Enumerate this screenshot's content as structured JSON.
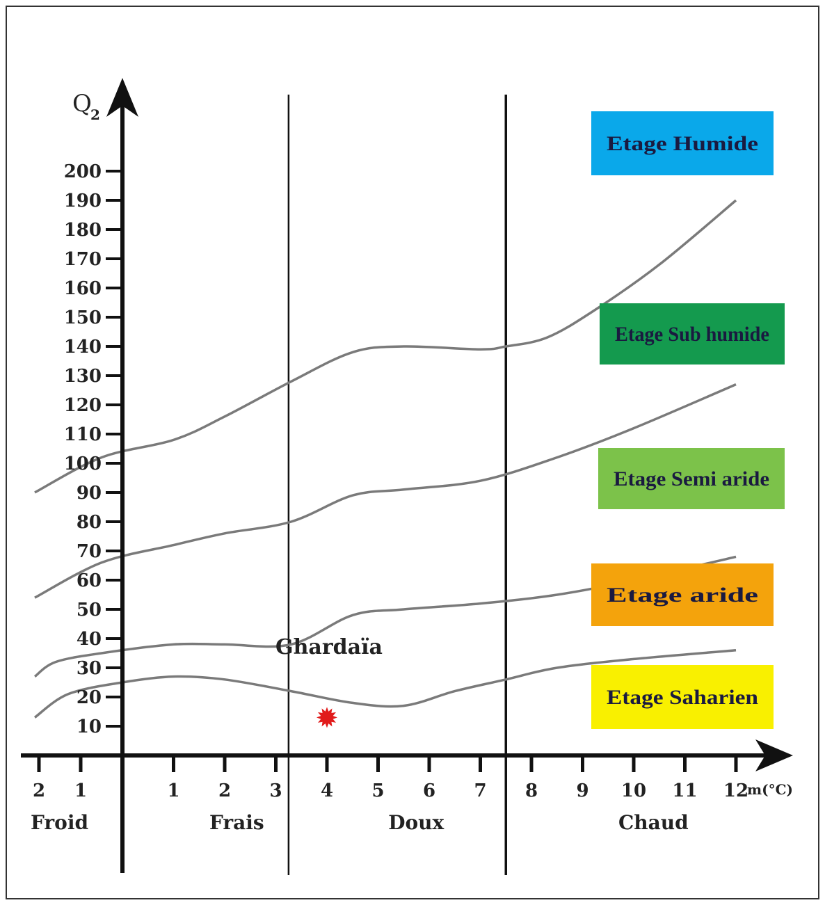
{
  "chart_data": {
    "type": "line",
    "title": "",
    "ylabel_main": "Q",
    "ylabel_sub": "2",
    "xlabel": "m(°C)",
    "xlim": [
      -3,
      12.4
    ],
    "ylim": [
      0,
      230
    ],
    "y_ticks": [
      10,
      20,
      30,
      40,
      50,
      60,
      70,
      80,
      90,
      100,
      110,
      120,
      130,
      140,
      150,
      160,
      170,
      180,
      190,
      200
    ],
    "x_ticks": [
      {
        "v": -2,
        "label": "2"
      },
      {
        "v": -1,
        "label": "1"
      },
      {
        "v": 1,
        "label": "1"
      },
      {
        "v": 2,
        "label": "2"
      },
      {
        "v": 3,
        "label": "3"
      },
      {
        "v": 4,
        "label": "4"
      },
      {
        "v": 5,
        "label": "5"
      },
      {
        "v": 6,
        "label": "6"
      },
      {
        "v": 7,
        "label": "7"
      },
      {
        "v": 8,
        "label": "8"
      },
      {
        "v": 9,
        "label": "9"
      },
      {
        "v": 10,
        "label": "10"
      },
      {
        "v": 11,
        "label": "11"
      },
      {
        "v": 12,
        "label": "12"
      }
    ],
    "zone_dividers": [
      3.25,
      7.5
    ],
    "zones": [
      {
        "label": "Froid",
        "x": -2.2
      },
      {
        "label": "Frais",
        "x": 1.7
      },
      {
        "label": "Doux",
        "x": 5.2
      },
      {
        "label": "Chaud",
        "x": 9.7
      }
    ],
    "boundaries": [
      {
        "x": [
          -2.1,
          -0.5,
          1,
          2,
          3.3,
          4.5,
          5.5,
          7,
          7.5,
          8.3,
          9.2,
          10.5,
          12
        ],
        "y": [
          90,
          102,
          108,
          116,
          128,
          138,
          140,
          139,
          140,
          143,
          152,
          168,
          190
        ]
      },
      {
        "x": [
          -2.1,
          -0.5,
          1,
          2,
          3.3,
          4.5,
          5.5,
          7,
          8.5,
          10,
          12
        ],
        "y": [
          54,
          66,
          72,
          76,
          80,
          89,
          91,
          94,
          102,
          112,
          127
        ]
      },
      {
        "x": [
          -2.1,
          -1.6,
          -0.5,
          1,
          2,
          3.3,
          4.5,
          5.5,
          7,
          8.5,
          10,
          12
        ],
        "y": [
          27,
          32,
          35,
          38,
          38,
          38,
          48,
          50,
          52,
          55,
          60,
          68
        ]
      },
      {
        "x": [
          -2.1,
          -1.3,
          0,
          1,
          2,
          3.3,
          4.5,
          5.5,
          6.5,
          7.5,
          8.5,
          10,
          12
        ],
        "y": [
          13,
          21,
          25,
          27,
          26,
          22,
          18,
          17,
          22,
          26,
          30,
          33,
          36
        ]
      }
    ],
    "station": {
      "label": "Ghardaïa",
      "x": 4,
      "y": 13,
      "color": "#e11b1b"
    },
    "legend": [
      {
        "label": "Etage Humide",
        "color": "#0aa8ea"
      },
      {
        "label": "Etage Sub humide",
        "color": "#149a4e"
      },
      {
        "label": "Etage Semi  aride",
        "color": "#7cc24a"
      },
      {
        "label": "Etage aride",
        "color": "#f4a30c"
      },
      {
        "label": "Etage Saharien",
        "color": "#f9f000"
      }
    ]
  }
}
